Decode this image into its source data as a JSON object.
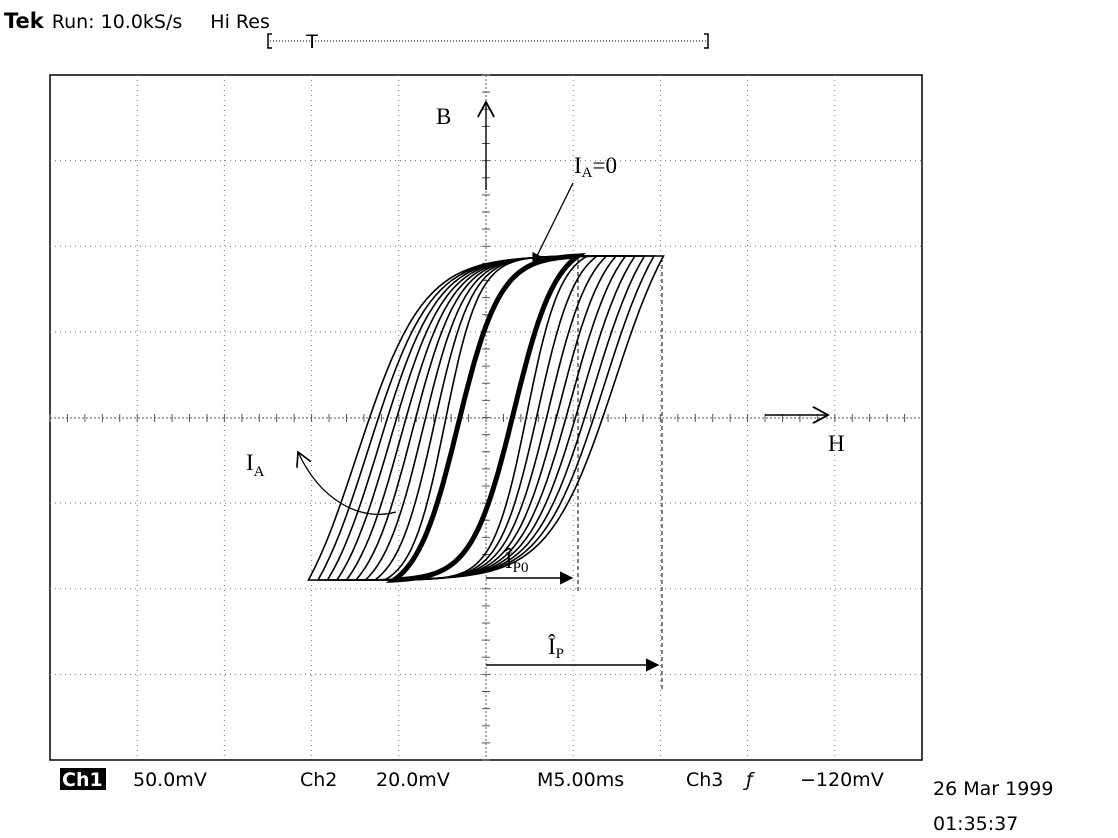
{
  "header": {
    "brand": "Tek",
    "mode": "Run: 10.0kS/s",
    "acquisition": "Hi Res",
    "trigger_marker": "T"
  },
  "annotations": {
    "b_axis": "B",
    "h_axis": "H",
    "ia_zero": {
      "main": "I",
      "sub": "A",
      "suffix": "=0"
    },
    "ia": {
      "main": "I",
      "sub": "A"
    },
    "ip0": {
      "main": "Î",
      "sub": "P0"
    },
    "ip": {
      "main": "Î",
      "sub": "P"
    }
  },
  "footer": {
    "ch1": "Ch1",
    "ch1_scale": "50.0mV",
    "ch2": "Ch2",
    "ch2_scale": "20.0mV",
    "timebase": "M5.00ms",
    "ch3": "Ch3",
    "trigger_slope": "ƒ",
    "trigger_level": "−120mV",
    "date": "26 Mar 1999",
    "time": "01:35:37"
  }
}
